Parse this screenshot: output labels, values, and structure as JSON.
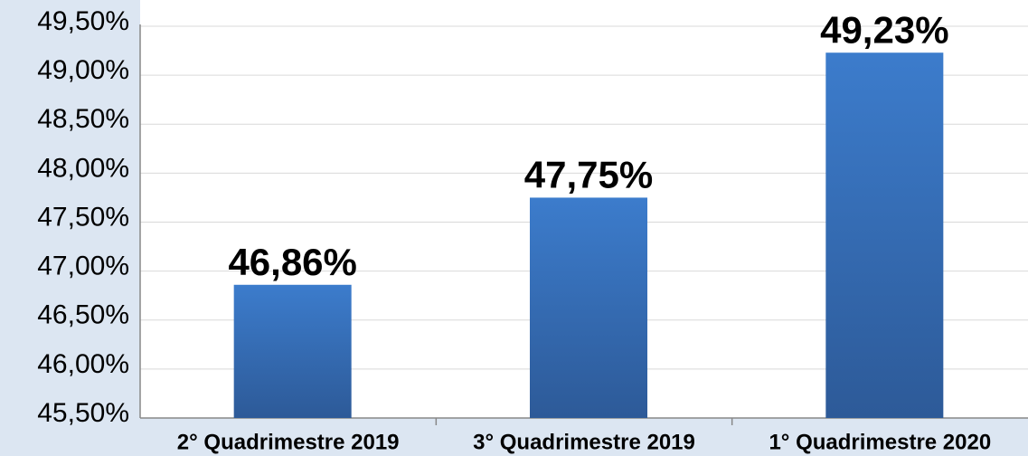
{
  "chart_data": {
    "type": "bar",
    "categories": [
      "2° Quadrimestre 2019",
      "3° Quadrimestre 2019",
      "1° Quadrimestre 2020"
    ],
    "values": [
      46.86,
      47.75,
      49.23
    ],
    "value_labels": [
      "46,86%",
      "47,75%",
      "49,23%"
    ],
    "color": "#3c7ccc",
    "ylim": [
      45.5,
      49.5
    ],
    "yticks": [
      {
        "value": 45.5,
        "label": "45,50%"
      },
      {
        "value": 46,
        "label": "46,00%"
      },
      {
        "value": 46.5,
        "label": "46,50%"
      },
      {
        "value": 47,
        "label": "47,00%"
      },
      {
        "value": 47.5,
        "label": "47,50%"
      },
      {
        "value": 48,
        "label": "48,00%"
      },
      {
        "value": 48.5,
        "label": "48,50%"
      },
      {
        "value": 49,
        "label": "49,00%"
      },
      {
        "value": 49.5,
        "label": "49,50%"
      }
    ],
    "grid": true
  }
}
